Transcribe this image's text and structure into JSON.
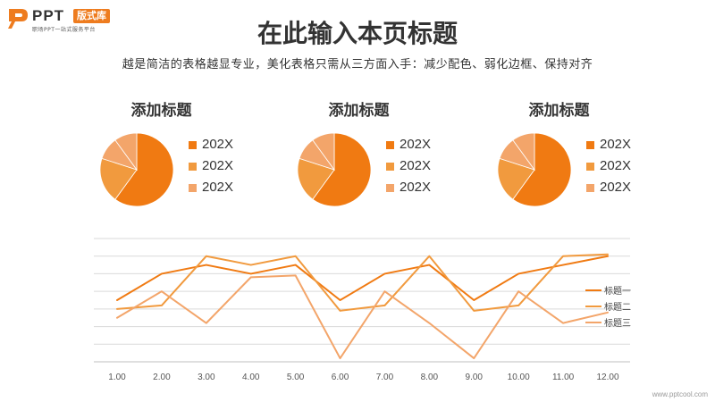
{
  "logo": {
    "text": "PPT",
    "badge": "版式库",
    "tagline": "职场PPT一站式服务平台"
  },
  "page": {
    "title": "在此输入本页标题",
    "subtitle": "越是简洁的表格越显专业，美化表格只需从三方面入手：减少配色、弱化边框、保持对齐"
  },
  "colors": {
    "dark": "#f07a12",
    "mid": "#f19a3e",
    "light": "#f3a56a",
    "grid": "#d9d9d9",
    "axis": "#bfbfbf"
  },
  "watermark": "www.pptcool.com",
  "chart_data": [
    {
      "type": "pie",
      "title": "添加标题",
      "categories": [
        "202X",
        "202X",
        "202X"
      ],
      "slices": [
        {
          "label": "202X",
          "value": 60,
          "color": "#f07a12"
        },
        {
          "label": "202X",
          "value": 20,
          "color": "#f19a3e"
        },
        {
          "label": "202X",
          "value": 10,
          "color": "#f3a56a"
        },
        {
          "value": 10,
          "color": "#f3a56a"
        }
      ]
    },
    {
      "type": "pie",
      "title": "添加标题",
      "categories": [
        "202X",
        "202X",
        "202X"
      ],
      "slices": [
        {
          "label": "202X",
          "value": 60,
          "color": "#f07a12"
        },
        {
          "label": "202X",
          "value": 20,
          "color": "#f19a3e"
        },
        {
          "label": "202X",
          "value": 10,
          "color": "#f3a56a"
        },
        {
          "value": 10,
          "color": "#f3a56a"
        }
      ]
    },
    {
      "type": "pie",
      "title": "添加标题",
      "categories": [
        "202X",
        "202X",
        "202X"
      ],
      "slices": [
        {
          "label": "202X",
          "value": 60,
          "color": "#f07a12"
        },
        {
          "label": "202X",
          "value": 20,
          "color": "#f19a3e"
        },
        {
          "label": "202X",
          "value": 10,
          "color": "#f3a56a"
        },
        {
          "value": 10,
          "color": "#f3a56a"
        }
      ]
    },
    {
      "type": "line",
      "x": [
        "1.00",
        "2.00",
        "3.00",
        "4.00",
        "5.00",
        "6.00",
        "7.00",
        "8.00",
        "9.00",
        "10.00",
        "11.00",
        "12.00"
      ],
      "ylim": [
        0,
        7
      ],
      "grid": true,
      "legend": "right",
      "series": [
        {
          "name": "标题一",
          "color": "#f07a12",
          "values": [
            3.5,
            5,
            5.5,
            5,
            5.5,
            3.5,
            5,
            5.5,
            3.5,
            5,
            5.5,
            6
          ]
        },
        {
          "name": "标题二",
          "color": "#f19a3e",
          "values": [
            3,
            3.2,
            6,
            5.5,
            6,
            2.9,
            3.2,
            6,
            2.9,
            3.2,
            6,
            6.1
          ]
        },
        {
          "name": "标题三",
          "color": "#f3a56a",
          "values": [
            2.5,
            4,
            2.2,
            4.8,
            4.9,
            0.2,
            4,
            2.2,
            0.2,
            4,
            2.2,
            2.8
          ]
        }
      ]
    }
  ]
}
